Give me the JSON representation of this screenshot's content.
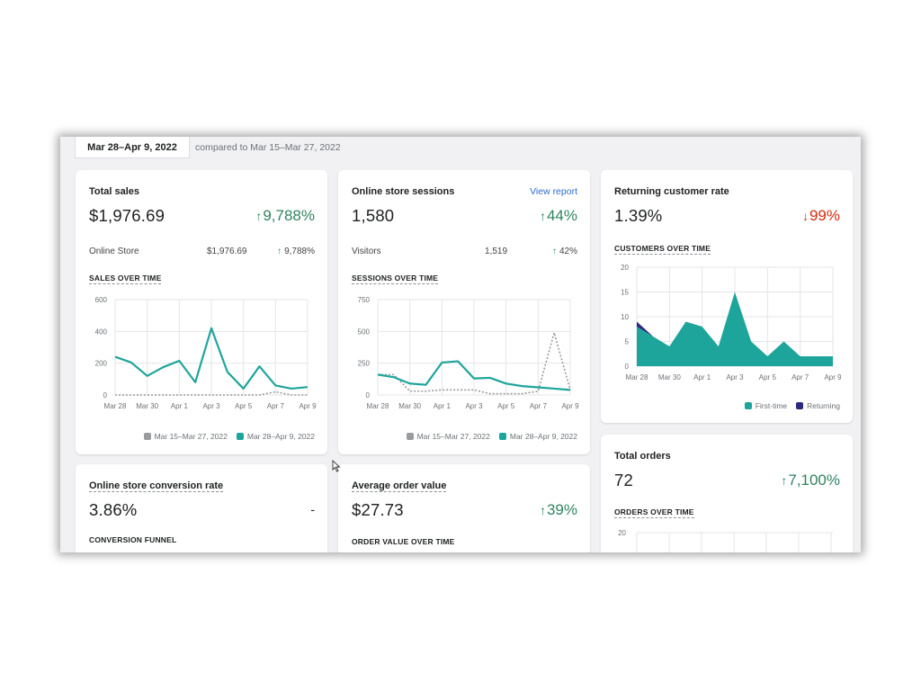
{
  "header": {
    "date_range": "Mar 28–Apr 9, 2022",
    "compared_to": "compared to Mar 15–Mar 27, 2022"
  },
  "colors": {
    "teal": "#1ea59b",
    "gray_dashed": "#9a9b9e",
    "navy": "#2b2a7c",
    "up": "#2f8460",
    "down": "#d72c0d"
  },
  "total_sales": {
    "title": "Total sales",
    "value": "$1,976.69",
    "delta": "9,788%",
    "row_label": "Online Store",
    "row_value": "$1,976.69",
    "row_delta": "9,788%",
    "chart_label": "SALES OVER TIME",
    "legend_prev": "Mar 15–Mar 27, 2022",
    "legend_cur": "Mar 28–Apr 9, 2022"
  },
  "sessions": {
    "title": "Online store sessions",
    "link": "View report",
    "value": "1,580",
    "delta": "44%",
    "row_label": "Visitors",
    "row_value": "1,519",
    "row_delta": "42%",
    "chart_label": "SESSIONS OVER TIME",
    "legend_prev": "Mar 15–Mar 27, 2022",
    "legend_cur": "Mar 28–Apr 9, 2022"
  },
  "returning": {
    "title": "Returning customer rate",
    "value": "1.39%",
    "delta": "99%",
    "chart_label": "CUSTOMERS OVER TIME",
    "legend_first": "First-time",
    "legend_returning": "Returning"
  },
  "conversion": {
    "title": "Online store conversion rate",
    "value": "3.86%",
    "delta": "-",
    "chart_label": "CONVERSION FUNNEL"
  },
  "aov": {
    "title": "Average order value",
    "value": "$27.73",
    "delta": "39%",
    "chart_label": "ORDER VALUE OVER TIME"
  },
  "orders": {
    "title": "Total orders",
    "value": "72",
    "delta": "7,100%",
    "chart_label": "ORDERS OVER TIME",
    "ytick": "20"
  },
  "chart_data": [
    {
      "type": "line",
      "title": "SALES OVER TIME",
      "x": [
        "Mar 28",
        "Mar 29",
        "Mar 30",
        "Mar 31",
        "Apr 1",
        "Apr 2",
        "Apr 3",
        "Apr 4",
        "Apr 5",
        "Apr 6",
        "Apr 7",
        "Apr 8",
        "Apr 9"
      ],
      "x_ticks": [
        "Mar 28",
        "Mar 30",
        "Apr 1",
        "Apr 3",
        "Apr 5",
        "Apr 7",
        "Apr 9"
      ],
      "y_ticks": [
        "600",
        "400",
        "200",
        "0"
      ],
      "ylim": [
        0,
        600
      ],
      "series": [
        {
          "name": "Mar 15–Mar 27, 2022",
          "style": "dashed",
          "values": [
            0,
            0,
            0,
            0,
            0,
            0,
            0,
            0,
            0,
            0,
            20,
            0,
            0
          ]
        },
        {
          "name": "Mar 28–Apr 9, 2022",
          "style": "solid",
          "values": [
            240,
            205,
            120,
            175,
            215,
            80,
            420,
            145,
            40,
            180,
            60,
            40,
            50
          ]
        }
      ]
    },
    {
      "type": "line",
      "title": "SESSIONS OVER TIME",
      "x": [
        "Mar 28",
        "Mar 29",
        "Mar 30",
        "Mar 31",
        "Apr 1",
        "Apr 2",
        "Apr 3",
        "Apr 4",
        "Apr 5",
        "Apr 6",
        "Apr 7",
        "Apr 8",
        "Apr 9"
      ],
      "x_ticks": [
        "Mar 28",
        "Mar 30",
        "Apr 1",
        "Apr 3",
        "Apr 5",
        "Apr 7",
        "Apr 9"
      ],
      "y_ticks": [
        "750",
        "500",
        "250",
        "0"
      ],
      "ylim": [
        0,
        750
      ],
      "series": [
        {
          "name": "Mar 15–Mar 27, 2022",
          "style": "dashed",
          "values": [
            160,
            160,
            30,
            30,
            40,
            40,
            40,
            10,
            10,
            10,
            30,
            490,
            40
          ]
        },
        {
          "name": "Mar 28–Apr 9, 2022",
          "style": "solid",
          "values": [
            160,
            140,
            90,
            80,
            255,
            265,
            130,
            135,
            90,
            70,
            60,
            50,
            40
          ]
        }
      ]
    },
    {
      "type": "area",
      "title": "CUSTOMERS OVER TIME",
      "x": [
        "Mar 28",
        "Mar 29",
        "Mar 30",
        "Mar 31",
        "Apr 1",
        "Apr 2",
        "Apr 3",
        "Apr 4",
        "Apr 5",
        "Apr 6",
        "Apr 7",
        "Apr 8",
        "Apr 9"
      ],
      "x_ticks": [
        "Mar 28",
        "Mar 30",
        "Apr 1",
        "Apr 3",
        "Apr 5",
        "Apr 7",
        "Apr 9"
      ],
      "y_ticks": [
        "20",
        "15",
        "10",
        "5",
        "0"
      ],
      "ylim": [
        0,
        20
      ],
      "series": [
        {
          "name": "First-time",
          "values": [
            8,
            6,
            4,
            9,
            8,
            4,
            15,
            5,
            2,
            5,
            2,
            2,
            2
          ]
        },
        {
          "name": "Returning",
          "values": [
            1,
            0,
            0,
            0,
            0,
            0,
            0,
            0,
            0,
            0,
            0,
            0,
            0
          ]
        }
      ]
    }
  ]
}
